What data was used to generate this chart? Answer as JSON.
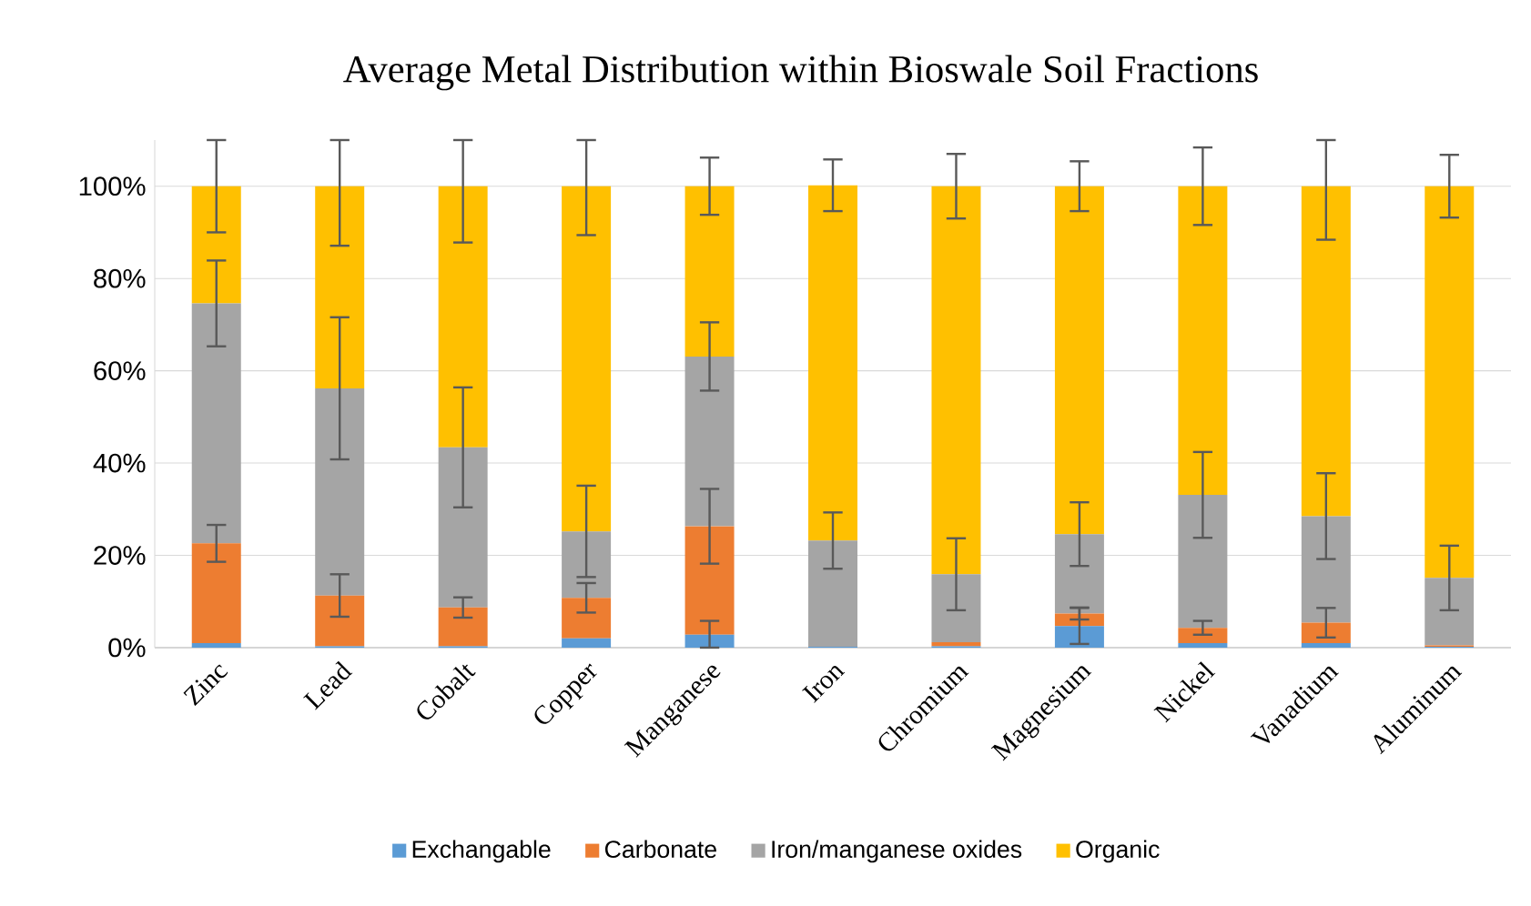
{
  "chart_data": {
    "type": "bar",
    "stacked": true,
    "title": "Average Metal Distribution within Bioswale Soil Fractions",
    "categories": [
      "Zinc",
      "Lead",
      "Cobalt",
      "Copper",
      "Manganese",
      "Iron",
      "Chromium",
      "Magnesium",
      "Nickel",
      "Vanadium",
      "Aluminum"
    ],
    "series": [
      {
        "name": "Exchangable",
        "color": "#5b9bd5",
        "values": [
          1.0,
          0.3,
          0.3,
          2.0,
          2.8,
          0.2,
          0.3,
          4.7,
          1.0,
          1.0,
          0.2
        ],
        "errors": [
          null,
          null,
          null,
          null,
          [
            0,
            5.8
          ],
          null,
          null,
          3.9,
          null,
          null,
          null
        ]
      },
      {
        "name": "Carbonate",
        "color": "#ed7d31",
        "values": [
          21.6,
          11.0,
          8.4,
          8.8,
          23.5,
          0,
          0.9,
          2.7,
          3.3,
          4.4,
          0.3
        ],
        "errors": [
          4,
          4.6,
          2.2,
          3.2,
          8.1,
          null,
          null,
          1.3,
          1.5,
          3.2,
          null
        ]
      },
      {
        "name": "Iron/manganese oxides",
        "color": "#a5a5a5",
        "values": [
          52.0,
          44.9,
          34.7,
          14.4,
          36.8,
          23.0,
          14.7,
          17.2,
          28.8,
          23.1,
          14.6
        ],
        "errors": [
          9.3,
          15.4,
          13,
          9.9,
          7.4,
          6.1,
          7.8,
          6.9,
          9.3,
          9.3,
          7
        ]
      },
      {
        "name": "Organic",
        "color": "#ffc000",
        "values": [
          25.4,
          43.8,
          56.6,
          74.8,
          36.9,
          77.0,
          84.1,
          75.4,
          66.9,
          71.5,
          84.9
        ],
        "errors": [
          10,
          [
            87.1,
            110
          ],
          [
            87.8,
            110
          ],
          [
            89.4,
            110
          ],
          6.2,
          5.6,
          7,
          5.4,
          8.4,
          [
            88.4,
            110
          ],
          6.8
        ]
      }
    ],
    "ylim": [
      0,
      110
    ],
    "yticks": [
      {
        "value": 0,
        "label": "0%"
      },
      {
        "value": 20,
        "label": "20%"
      },
      {
        "value": 40,
        "label": "40%"
      },
      {
        "value": 60,
        "label": "60%"
      },
      {
        "value": 80,
        "label": "80%"
      },
      {
        "value": 100,
        "label": "100%"
      }
    ],
    "grid": "y",
    "legend": "bottom"
  }
}
